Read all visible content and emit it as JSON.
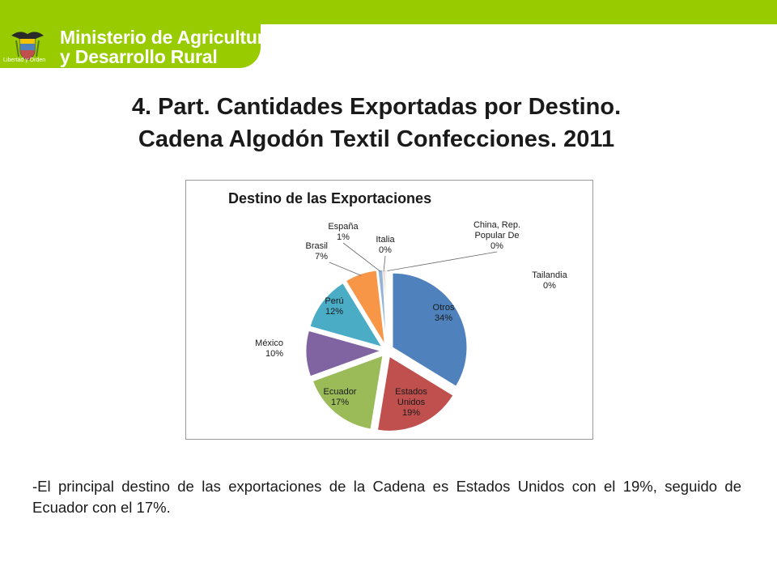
{
  "header": {
    "logo_line1": "Ministerio de Agricultura",
    "logo_line2": "y Desarrollo Rural",
    "crest_caption": "Libertad y Orden",
    "colors": {
      "brand_green": "#99cc00"
    },
    "crest_icon": "coat-of-arms-icon"
  },
  "slide": {
    "title_line1": "4.  Part. Cantidades Exportadas por Destino.",
    "title_line2": "Cadena Algodón Textil Confecciones.  2011",
    "description": "-El principal destino de las exportaciones de la Cadena es Estados Unidos con el 19%, seguido de Ecuador con el 17%."
  },
  "chart_data": {
    "type": "pie",
    "title": "Destino de las Exportaciones",
    "exploded": true,
    "labels_show": "category-and-percent",
    "slices": [
      {
        "name": "Otros",
        "name_lines": [
          "Otros"
        ],
        "value": 34,
        "label": "34%",
        "color": "#4f81bd"
      },
      {
        "name": "Estados Unidos",
        "name_lines": [
          "Estados",
          "Unidos"
        ],
        "value": 19,
        "label": "19%",
        "color": "#c0504d"
      },
      {
        "name": "Ecuador",
        "name_lines": [
          "Ecuador"
        ],
        "value": 17,
        "label": "17%",
        "color": "#9bbb59"
      },
      {
        "name": "México",
        "name_lines": [
          "México"
        ],
        "value": 10,
        "label": "10%",
        "color": "#8064a2"
      },
      {
        "name": "Perú",
        "name_lines": [
          "Perú"
        ],
        "value": 12,
        "label": "12%",
        "color": "#4bacc6"
      },
      {
        "name": "Brasil",
        "name_lines": [
          "Brasil"
        ],
        "value": 7,
        "label": "7%",
        "color": "#f79646"
      },
      {
        "name": "España",
        "name_lines": [
          "España"
        ],
        "value": 1,
        "label": "1%",
        "color": "#95b3d7"
      },
      {
        "name": "Italia",
        "name_lines": [
          "Italia"
        ],
        "value": 0.3,
        "label": "0%",
        "color": "#d99694"
      },
      {
        "name": "China, Rep. Popular De",
        "name_lines": [
          "China, Rep.",
          "Popular De"
        ],
        "value": 0.3,
        "label": "0%",
        "color": "#c3d69b"
      },
      {
        "name": "Tailandia",
        "name_lines": [
          "Tailandia"
        ],
        "value": 0.2,
        "label": "0%",
        "color": "#b2a2c7"
      }
    ]
  }
}
